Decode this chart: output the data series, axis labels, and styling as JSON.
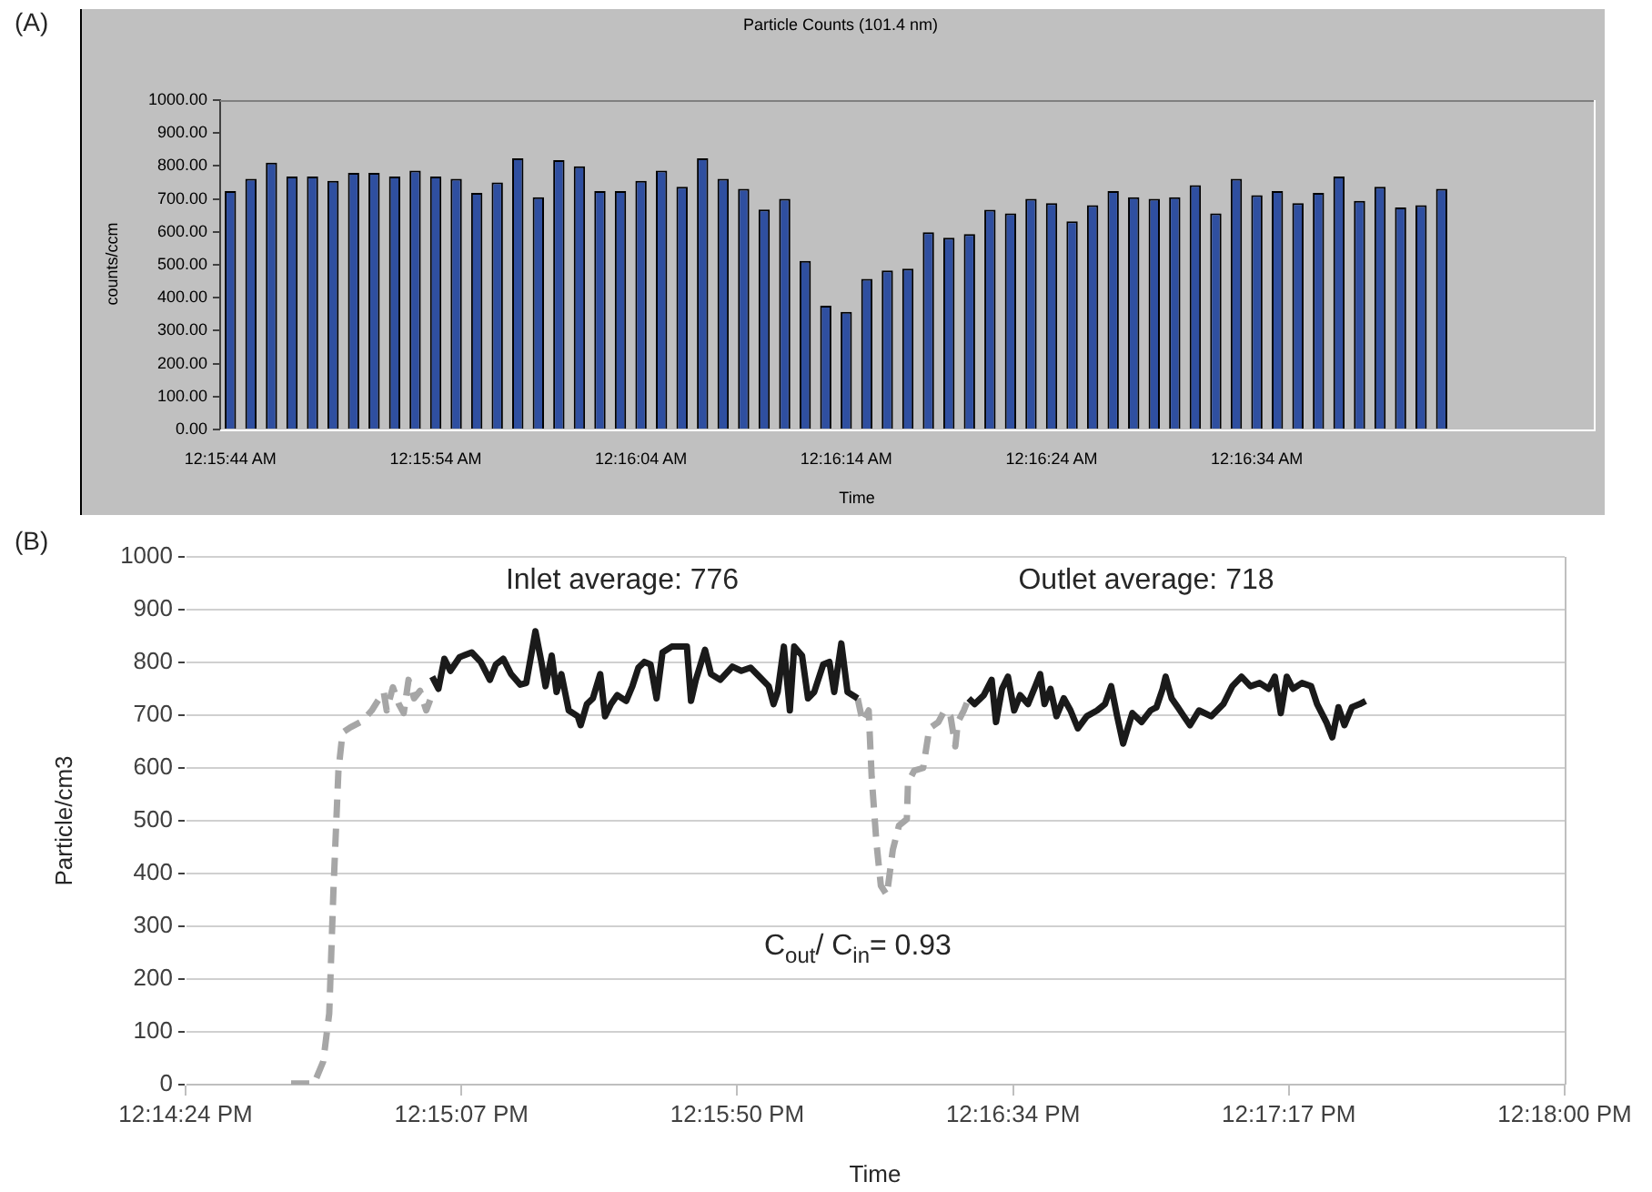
{
  "chart_data": [
    {
      "type": "bar",
      "title": "Particle Counts (101.4 nm)",
      "xlabel": "Time",
      "ylabel": "counts/ccm",
      "annotations": [
        "(A)"
      ],
      "categories": [
        "12:15:44 AM",
        null,
        null,
        null,
        null,
        null,
        null,
        null,
        null,
        null,
        "12:15:54 AM",
        null,
        null,
        null,
        null,
        null,
        null,
        null,
        null,
        null,
        "12:16:04 AM",
        null,
        null,
        null,
        null,
        null,
        null,
        null,
        null,
        null,
        "12:16:14 AM",
        null,
        null,
        null,
        null,
        null,
        null,
        null,
        null,
        null,
        "12:16:24 AM",
        null,
        null,
        null,
        null,
        null,
        null,
        null,
        null,
        null,
        "12:16:34 AM",
        null,
        null,
        null,
        null,
        null,
        null,
        null,
        null,
        null,
        null,
        null,
        null,
        null,
        null,
        null,
        null
      ],
      "values": [
        724,
        761,
        810,
        768,
        768,
        755,
        779,
        779,
        768,
        786,
        768,
        761,
        718,
        750,
        823,
        705,
        818,
        799,
        724,
        724,
        755,
        786,
        737,
        823,
        761,
        731,
        668,
        700,
        512,
        376,
        357,
        457,
        483,
        488,
        599,
        582,
        593,
        667,
        656,
        700,
        687,
        632,
        681,
        724,
        705,
        700,
        705,
        742,
        656,
        761,
        711,
        724,
        687,
        718,
        768,
        694,
        737,
        674,
        681,
        731,
        null,
        null,
        null,
        null,
        null,
        null,
        null
      ],
      "color": "#2f4fa0",
      "ylim": [
        0,
        1000
      ],
      "yticks": [
        {
          "value": 0,
          "label": "0.00"
        },
        {
          "value": 100,
          "label": "100.00"
        },
        {
          "value": 200,
          "label": "200.00"
        },
        {
          "value": 300,
          "label": "300.00"
        },
        {
          "value": 400,
          "label": "400.00"
        },
        {
          "value": 500,
          "label": "500.00"
        },
        {
          "value": 600,
          "label": "600.00"
        },
        {
          "value": 700,
          "label": "700.00"
        },
        {
          "value": 800,
          "label": "800.00"
        },
        {
          "value": 900,
          "label": "900.00"
        },
        {
          "value": 1000,
          "label": "1000.00"
        }
      ]
    },
    {
      "type": "line",
      "xlabel": "Time",
      "ylabel": "Particle/cm3",
      "annotations": [
        "(B)",
        "Inlet average: 776",
        "Outlet average: 718",
        "C$_{out}$/ C$_{in}$= 0.93"
      ],
      "xlim": [
        12.24,
        12.3
      ],
      "xticks": [
        {
          "value": 12.24,
          "label": "12:14:24 PM"
        },
        {
          "value": 12.252,
          "label": "12:15:07 PM"
        },
        {
          "value": 12.264,
          "label": "12:15:50 PM"
        },
        {
          "value": 12.276,
          "label": "12:16:34 PM"
        },
        {
          "value": 12.288,
          "label": "12:17:17 PM"
        },
        {
          "value": 12.3,
          "label": "12:18:00 PM"
        }
      ],
      "ylim": [
        0,
        1000
      ],
      "yticks": [
        0,
        100,
        200,
        300,
        400,
        500,
        600,
        700,
        800,
        900,
        1000
      ],
      "grid": "y",
      "series": [
        {
          "color": "#a6a6a6",
          "line_style": "dashed",
          "x": [
            12.24459,
            12.24559,
            12.24599,
            12.24625,
            12.24643,
            12.24665,
            12.24683,
            12.24717,
            12.2477,
            12.2481,
            12.24836,
            12.24862,
            12.24875,
            12.24902,
            12.24928,
            12.24949,
            12.2497,
            12.24994,
            12.2502,
            12.25047,
            12.25073
          ],
          "values": [
            2,
            2,
            44,
            135,
            365,
            595,
            667,
            677,
            689,
            709,
            727,
            744,
            709,
            753,
            721,
            704,
            767,
            732,
            746,
            709,
            739
          ]
        },
        {
          "color": "#1a1a1a",
          "x": [
            12.25073,
            12.251,
            12.25126,
            12.25152,
            12.25192,
            12.25245,
            12.25284,
            12.25324,
            12.2535,
            12.25382,
            12.25416,
            12.25456,
            12.25482,
            12.25522,
            12.25548,
            12.25566,
            12.25593,
            12.25614,
            12.25635,
            12.25667,
            12.25706,
            12.25719,
            12.25746,
            12.25772,
            12.25804,
            12.25825,
            12.25851,
            12.25878,
            12.25917,
            12.25944,
            12.2597,
            12.25996,
            12.26023,
            12.26049,
            12.26075,
            12.26115,
            12.26181,
            12.26199,
            12.2622,
            12.2626,
            12.26286,
            12.26326,
            12.26379,
            12.26418,
            12.26458,
            12.26497,
            12.26537,
            12.26558,
            12.26576,
            12.26603,
            12.26629,
            12.26648,
            12.26682,
            12.26708,
            12.26735,
            12.26774,
            12.26801,
            12.26822,
            12.26853,
            12.2688,
            12.26924
          ],
          "values": [
            773,
            750,
            807,
            784,
            810,
            819,
            801,
            767,
            796,
            807,
            778,
            758,
            761,
            859,
            801,
            755,
            813,
            744,
            778,
            709,
            698,
            681,
            721,
            732,
            778,
            698,
            721,
            738,
            727,
            755,
            790,
            801,
            796,
            732,
            819,
            830,
            830,
            727,
            767,
            824,
            778,
            767,
            792,
            784,
            790,
            773,
            755,
            721,
            744,
            830,
            709,
            830,
            813,
            732,
            744,
            796,
            801,
            744,
            836,
            744,
            732
          ]
        },
        {
          "color": "#a6a6a6",
          "line_style": "dashed",
          "x": [
            12.26924,
            12.26946,
            12.26972,
            12.26985,
            12.27006,
            12.27025,
            12.27051,
            12.27077,
            12.27104,
            12.27138,
            12.27143,
            12.2717,
            12.27209,
            12.27236,
            12.27275,
            12.27302,
            12.27328,
            12.27349,
            12.2736,
            12.27386,
            12.27407
          ],
          "values": [
            732,
            687,
            709,
            583,
            457,
            377,
            359,
            445,
            491,
            503,
            572,
            595,
            600,
            675,
            687,
            709,
            698,
            641,
            687,
            709,
            732
          ]
        },
        {
          "color": "#1a1a1a",
          "x": [
            12.27407,
            12.27433,
            12.27473,
            12.27507,
            12.27526,
            12.27552,
            12.27578,
            12.27605,
            12.27631,
            12.27665,
            12.27697,
            12.27718,
            12.27737,
            12.27763,
            12.27789,
            12.27821,
            12.2785,
            12.27882,
            12.27921,
            12.27966,
            12.28,
            12.28027,
            12.28053,
            12.28079,
            12.28119,
            12.28159,
            12.28198,
            12.28224,
            12.28251,
            12.28264,
            12.2829,
            12.28317,
            12.28343,
            12.2837,
            12.28409,
            12.28462,
            12.28515,
            12.28554,
            12.28594,
            12.28633,
            12.28673,
            12.28712,
            12.28739,
            12.28765,
            12.28791,
            12.28818,
            12.28857,
            12.28897,
            12.28923,
            12.28963,
            12.28989,
            12.29016,
            12.29042,
            12.29074,
            12.29108,
            12.29134
          ],
          "values": [
            732,
            721,
            738,
            767,
            687,
            750,
            773,
            709,
            738,
            721,
            755,
            778,
            721,
            750,
            698,
            732,
            709,
            675,
            698,
            709,
            721,
            755,
            698,
            646,
            704,
            687,
            709,
            715,
            750,
            773,
            732,
            715,
            698,
            681,
            709,
            698,
            721,
            755,
            773,
            755,
            761,
            750,
            773,
            704,
            773,
            750,
            761,
            755,
            721,
            687,
            658,
            715,
            681,
            715,
            721,
            727
          ]
        }
      ]
    }
  ]
}
